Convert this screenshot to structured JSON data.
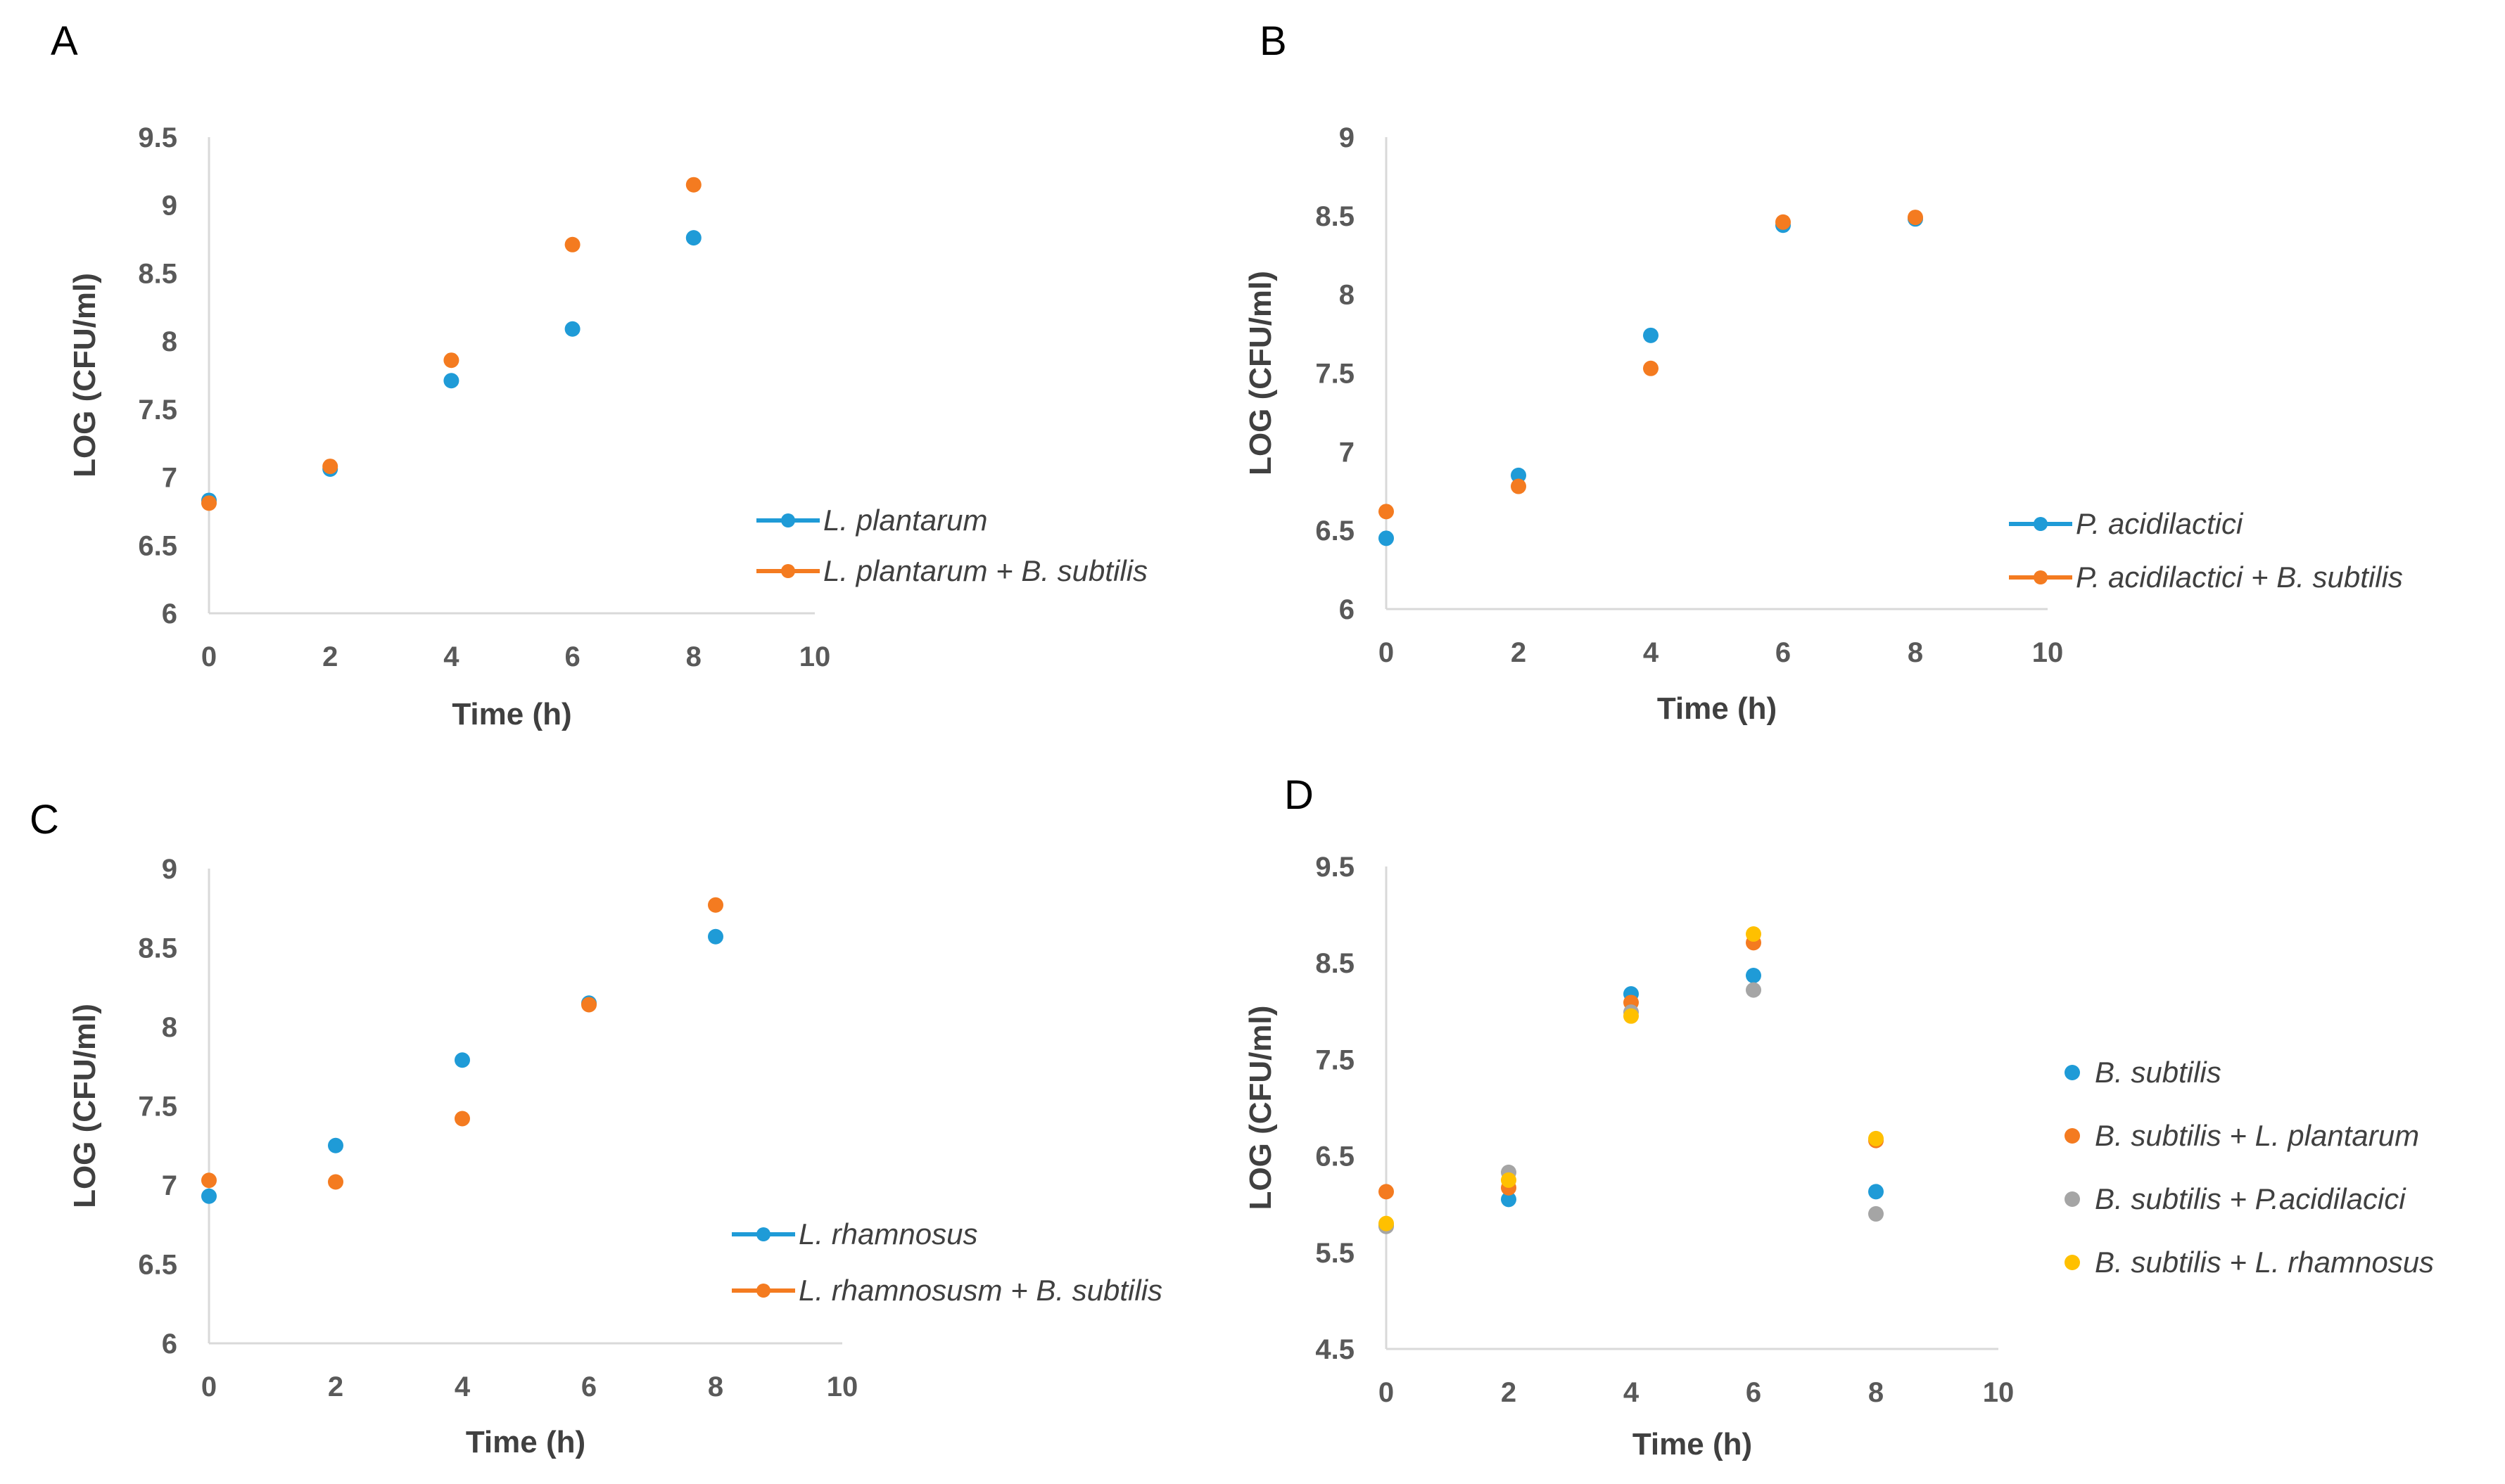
{
  "chart_data": [
    {
      "panel": "A",
      "type": "scatter",
      "xlabel": "Time (h)",
      "ylabel": "LOG (CFU/ml)",
      "xlim": [
        0,
        10
      ],
      "ylim": [
        6,
        9.5
      ],
      "x_ticks": [
        "0",
        "2",
        "4",
        "6",
        "8",
        "10"
      ],
      "y_ticks": [
        "6",
        "6.5",
        "7",
        "7.5",
        "8",
        "8.5",
        "9",
        "9.5"
      ],
      "legend_style": "line",
      "series": [
        {
          "name": "L. plantarum",
          "color": "#1f9bd7",
          "x": [
            0,
            2,
            4,
            6,
            8
          ],
          "y": [
            6.83,
            7.06,
            7.71,
            8.09,
            8.76
          ]
        },
        {
          "name": "L. plantarum + B. subtilis",
          "color": "#f47b20",
          "x": [
            0,
            2,
            4,
            6,
            8
          ],
          "y": [
            6.81,
            7.08,
            7.86,
            8.71,
            9.15
          ]
        }
      ]
    },
    {
      "panel": "B",
      "type": "scatter",
      "xlabel": "Time (h)",
      "ylabel": "LOG (CFU/ml)",
      "xlim": [
        0,
        10
      ],
      "ylim": [
        6,
        9
      ],
      "x_ticks": [
        "0",
        "2",
        "4",
        "6",
        "8",
        "10"
      ],
      "y_ticks": [
        "6",
        "6.5",
        "7",
        "7.5",
        "8",
        "8.5",
        "9"
      ],
      "legend_style": "line",
      "series": [
        {
          "name": "P. acidilactici",
          "color": "#1f9bd7",
          "x": [
            0,
            2,
            4,
            6,
            8
          ],
          "y": [
            6.45,
            6.85,
            7.74,
            8.44,
            8.48
          ]
        },
        {
          "name": "P. acidilactici + B. subtilis",
          "color": "#f47b20",
          "x": [
            0,
            2,
            4,
            6,
            8
          ],
          "y": [
            6.62,
            6.78,
            7.53,
            8.46,
            8.49
          ]
        }
      ]
    },
    {
      "panel": "C",
      "type": "scatter",
      "xlabel": "Time (h)",
      "ylabel": "LOG (CFU/ml)",
      "xlim": [
        0,
        10
      ],
      "ylim": [
        6,
        9
      ],
      "x_ticks": [
        "0",
        "2",
        "4",
        "6",
        "8",
        "10"
      ],
      "y_ticks": [
        "6",
        "6.5",
        "7",
        "7.5",
        "8",
        "8.5",
        "9"
      ],
      "legend_style": "line",
      "series": [
        {
          "name": "L. rhamnosus",
          "color": "#1f9bd7",
          "x": [
            0,
            2,
            4,
            6,
            8
          ],
          "y": [
            6.93,
            7.25,
            7.79,
            8.15,
            8.57
          ]
        },
        {
          "name": "L. rhamnosusm + B. subtilis",
          "color": "#f47b20",
          "x": [
            0,
            2,
            4,
            6,
            8
          ],
          "y": [
            7.03,
            7.02,
            7.42,
            8.14,
            8.77
          ]
        }
      ]
    },
    {
      "panel": "D",
      "type": "scatter",
      "xlabel": "Time (h)",
      "ylabel": "LOG (CFU/ml)",
      "xlim": [
        0,
        10
      ],
      "ylim": [
        4.5,
        9.5
      ],
      "x_ticks": [
        "0",
        "2",
        "4",
        "6",
        "8",
        "10"
      ],
      "y_ticks": [
        "4.5",
        "5.5",
        "6.5",
        "7.5",
        "8.5",
        "9.5"
      ],
      "legend_style": "marker",
      "series": [
        {
          "name": "B. subtilis",
          "color": "#1f9bd7",
          "x": [
            0,
            2,
            4,
            6,
            8
          ],
          "y": [
            5.78,
            6.05,
            8.18,
            8.37,
            6.13
          ]
        },
        {
          "name": "B. subtilis  + L. plantarum",
          "color": "#f47b20",
          "x": [
            0,
            2,
            4,
            6,
            8
          ],
          "y": [
            6.13,
            6.17,
            8.09,
            8.71,
            6.66
          ]
        },
        {
          "name": "B. subtilis + P.acidilacici",
          "color": "#a5a5a5",
          "x": [
            0,
            2,
            4,
            6,
            8
          ],
          "y": [
            5.77,
            6.33,
            7.99,
            8.22,
            5.9
          ]
        },
        {
          "name": " B. subtilis + L. rhamnosus",
          "color": "#ffc000",
          "x": [
            0,
            2,
            4,
            6,
            8
          ],
          "y": [
            5.8,
            6.25,
            7.95,
            8.8,
            6.68
          ]
        }
      ]
    }
  ]
}
